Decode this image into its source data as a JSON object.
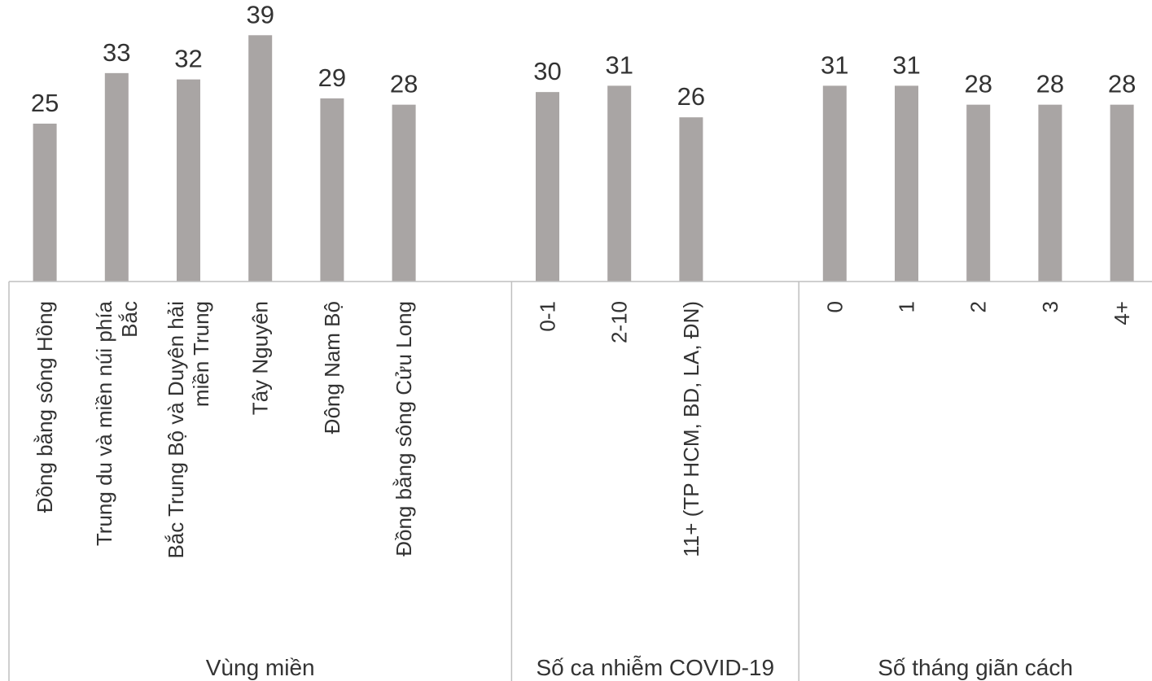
{
  "chart_data": {
    "type": "bar",
    "title": "",
    "xlabel": "",
    "ylabel": "",
    "ylim": [
      0,
      42
    ],
    "colors": {
      "bar": "#a9a5a4",
      "axis": "#bfbfbf",
      "text": "#333333"
    },
    "groups": [
      {
        "name": "Vùng miền",
        "categories": [
          [
            "Đồng bằng sông Hồng"
          ],
          [
            "Trung du và miền núi phía",
            "Bắc"
          ],
          [
            "Bắc Trung Bộ và Duyên hải",
            "miền Trung"
          ],
          [
            "Tây Nguyên"
          ],
          [
            "Đông Nam Bộ"
          ],
          [
            "Đồng bằng sông Cửu Long"
          ]
        ],
        "values": [
          25,
          33,
          32,
          39,
          29,
          28
        ]
      },
      {
        "name": "Số ca nhiễm COVID-19",
        "categories": [
          [
            "0-1"
          ],
          [
            "2-10"
          ],
          [
            "11+ (TP HCM, BD, LA, ĐN)"
          ]
        ],
        "values": [
          30,
          31,
          26
        ]
      },
      {
        "name": "Số tháng giãn cách",
        "categories": [
          [
            "0"
          ],
          [
            "1"
          ],
          [
            "2"
          ],
          [
            "3"
          ],
          [
            "4+"
          ]
        ],
        "values": [
          31,
          31,
          28,
          28,
          28
        ]
      }
    ]
  }
}
